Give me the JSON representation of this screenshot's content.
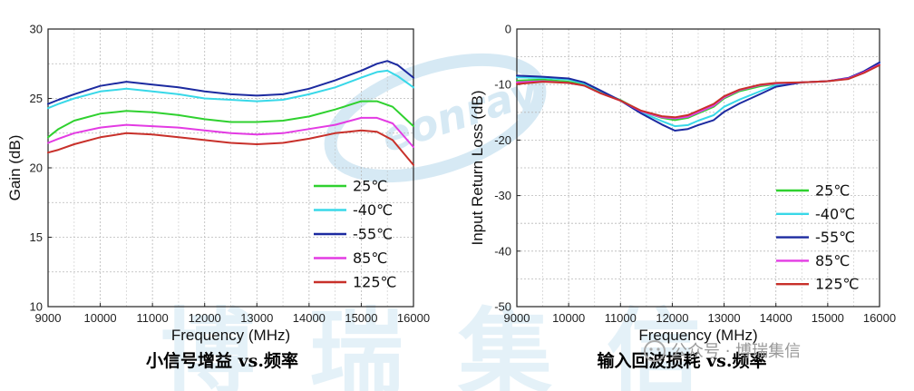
{
  "chart_data": [
    {
      "type": "line",
      "caption": "小信号增益 vs.频率",
      "xlabel": "Frequency (MHz)",
      "ylabel": "Gain (dB)",
      "xlim": [
        9000,
        16000
      ],
      "ylim": [
        10,
        30
      ],
      "xticks": [
        9000,
        10000,
        11000,
        12000,
        13000,
        14000,
        15000,
        16000
      ],
      "yticks": [
        10,
        15,
        20,
        25,
        30
      ],
      "grid": true,
      "legend_position": "bottom-right",
      "series": [
        {
          "name": "25℃",
          "color": "#2fd12f",
          "x": [
            9000,
            9200,
            9500,
            10000,
            10500,
            11000,
            11500,
            12000,
            12500,
            13000,
            13500,
            14000,
            14500,
            15000,
            15300,
            15600,
            16000
          ],
          "y": [
            22.2,
            22.8,
            23.4,
            23.9,
            24.1,
            24.0,
            23.8,
            23.5,
            23.3,
            23.3,
            23.4,
            23.7,
            24.2,
            24.8,
            24.8,
            24.4,
            23.0
          ]
        },
        {
          "name": "-40℃",
          "color": "#38d8e8",
          "x": [
            9000,
            9200,
            9500,
            10000,
            10500,
            11000,
            11500,
            12000,
            12500,
            13000,
            13500,
            14000,
            14500,
            15000,
            15300,
            15500,
            15700,
            16000
          ],
          "y": [
            24.3,
            24.6,
            25.0,
            25.5,
            25.7,
            25.5,
            25.3,
            25.0,
            24.9,
            24.8,
            24.9,
            25.3,
            25.8,
            26.5,
            26.9,
            27.0,
            26.6,
            25.8
          ]
        },
        {
          "name": "-55℃",
          "color": "#1c2aa0",
          "x": [
            9000,
            9200,
            9500,
            10000,
            10500,
            11000,
            11500,
            12000,
            12500,
            13000,
            13500,
            14000,
            14500,
            15000,
            15300,
            15500,
            15700,
            16000
          ],
          "y": [
            24.6,
            24.9,
            25.3,
            25.9,
            26.2,
            26.0,
            25.8,
            25.5,
            25.3,
            25.2,
            25.3,
            25.7,
            26.3,
            27.0,
            27.5,
            27.7,
            27.4,
            26.5
          ]
        },
        {
          "name": "85℃",
          "color": "#e33be3",
          "x": [
            9000,
            9200,
            9500,
            10000,
            10500,
            11000,
            11500,
            12000,
            12500,
            13000,
            13500,
            14000,
            14500,
            15000,
            15300,
            15600,
            16000
          ],
          "y": [
            21.8,
            22.1,
            22.5,
            22.9,
            23.1,
            23.0,
            22.9,
            22.7,
            22.5,
            22.4,
            22.5,
            22.8,
            23.1,
            23.6,
            23.6,
            23.2,
            21.5
          ]
        },
        {
          "name": "125℃",
          "color": "#c8302a",
          "x": [
            9000,
            9200,
            9500,
            10000,
            10500,
            11000,
            11500,
            12000,
            12500,
            13000,
            13500,
            14000,
            14500,
            15000,
            15300,
            15600,
            16000
          ],
          "y": [
            21.1,
            21.3,
            21.7,
            22.2,
            22.5,
            22.4,
            22.2,
            22.0,
            21.8,
            21.7,
            21.8,
            22.1,
            22.5,
            22.7,
            22.6,
            22.0,
            20.2
          ]
        }
      ]
    },
    {
      "type": "line",
      "caption": "输入回波损耗 vs.频率",
      "xlabel": "Frequency (MHz)",
      "ylabel": "Input Return Loss (dB)",
      "xlim": [
        9000,
        16000
      ],
      "ylim": [
        -50,
        0
      ],
      "xticks": [
        9000,
        10000,
        11000,
        12000,
        13000,
        14000,
        15000,
        16000
      ],
      "yticks": [
        0,
        -10,
        -20,
        -30,
        -40,
        -50
      ],
      "grid": true,
      "legend_position": "bottom-right",
      "series": [
        {
          "name": "25℃",
          "color": "#2fd12f",
          "x": [
            9000,
            9500,
            10000,
            10300,
            10600,
            11000,
            11400,
            11800,
            12050,
            12300,
            12500,
            12800,
            13000,
            13300,
            13700,
            14000,
            14500,
            15000,
            15400,
            15700,
            16000
          ],
          "y": [
            -9.3,
            -9.1,
            -9.5,
            -10.0,
            -11.3,
            -12.8,
            -14.8,
            -16.0,
            -16.4,
            -16.0,
            -15.2,
            -14.0,
            -12.5,
            -11.2,
            -10.3,
            -9.9,
            -9.6,
            -9.4,
            -8.9,
            -7.7,
            -6.3
          ]
        },
        {
          "name": "-40℃",
          "color": "#38d8e8",
          "x": [
            9000,
            9500,
            10000,
            10300,
            10600,
            11000,
            11400,
            11800,
            12050,
            12300,
            12500,
            12800,
            13000,
            13300,
            13700,
            14000,
            14500,
            15000,
            15400,
            15700,
            16000
          ],
          "y": [
            -8.7,
            -8.8,
            -9.1,
            -9.8,
            -11.1,
            -12.9,
            -15.0,
            -16.6,
            -17.5,
            -17.3,
            -16.5,
            -15.5,
            -14.0,
            -12.7,
            -11.2,
            -10.1,
            -9.6,
            -9.4,
            -8.9,
            -7.7,
            -6.2
          ]
        },
        {
          "name": "-55℃",
          "color": "#1c2aa0",
          "x": [
            9000,
            9500,
            10000,
            10300,
            10600,
            11000,
            11400,
            11800,
            12050,
            12300,
            12500,
            12800,
            13000,
            13300,
            13700,
            14000,
            14500,
            15000,
            15400,
            15700,
            16000
          ],
          "y": [
            -8.4,
            -8.6,
            -8.9,
            -9.6,
            -11.0,
            -12.9,
            -15.2,
            -17.2,
            -18.3,
            -18.0,
            -17.3,
            -16.4,
            -14.9,
            -13.4,
            -11.7,
            -10.4,
            -9.6,
            -9.4,
            -8.8,
            -7.6,
            -6.0
          ]
        },
        {
          "name": "85℃",
          "color": "#e33be3",
          "x": [
            9000,
            9500,
            10000,
            10300,
            10600,
            11000,
            11400,
            11800,
            12050,
            12300,
            12500,
            12800,
            13000,
            13300,
            13700,
            14000,
            14500,
            15000,
            15400,
            15700,
            16000
          ],
          "y": [
            -9.6,
            -9.4,
            -9.7,
            -10.2,
            -11.5,
            -12.9,
            -14.8,
            -15.9,
            -16.1,
            -15.8,
            -15.0,
            -13.8,
            -12.3,
            -11.0,
            -10.1,
            -9.8,
            -9.6,
            -9.4,
            -8.9,
            -7.8,
            -6.4
          ]
        },
        {
          "name": "125℃",
          "color": "#c8302a",
          "x": [
            9000,
            9500,
            10000,
            10300,
            10600,
            11000,
            11400,
            11800,
            12050,
            12300,
            12500,
            12800,
            13000,
            13300,
            13700,
            14000,
            14500,
            15000,
            15400,
            15700,
            16000
          ],
          "y": [
            -9.9,
            -9.5,
            -9.7,
            -10.2,
            -11.5,
            -12.9,
            -14.7,
            -15.7,
            -15.9,
            -15.5,
            -14.7,
            -13.5,
            -12.1,
            -10.9,
            -10.0,
            -9.7,
            -9.6,
            -9.4,
            -9.0,
            -7.9,
            -6.5
          ]
        }
      ]
    }
  ],
  "watermark": {
    "logo_text": "eonray",
    "large_text": "博瑞集信",
    "wechat_label": "公众号 · 博瑞集信"
  }
}
